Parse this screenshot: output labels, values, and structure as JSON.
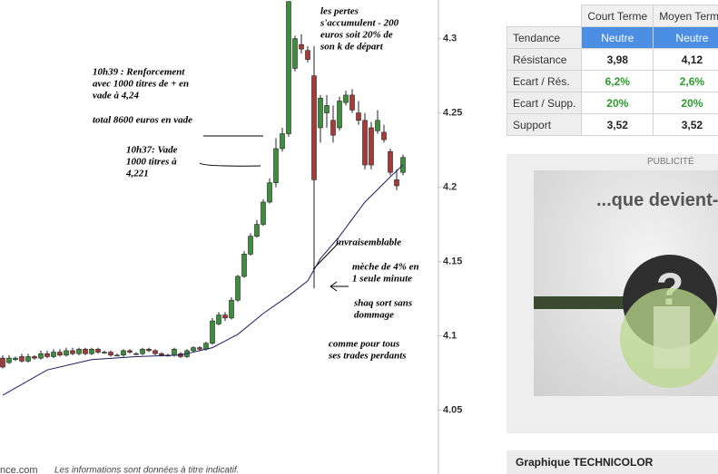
{
  "chart_data": {
    "type": "candlestick",
    "categories": [
      null,
      null,
      null,
      null,
      null,
      null,
      null,
      null,
      null,
      null,
      null,
      null,
      null,
      null,
      null,
      null,
      null,
      null,
      null,
      null,
      null,
      null,
      null,
      null,
      null,
      null,
      null,
      null,
      null,
      null,
      null,
      null,
      null,
      null,
      null,
      null,
      null,
      null,
      null,
      null,
      null,
      null,
      null,
      null,
      null,
      null,
      null,
      null,
      null,
      null,
      null,
      null,
      null,
      null,
      null,
      null,
      null,
      null,
      null,
      null,
      null,
      null,
      null,
      null
    ],
    "open": [
      4.085,
      4.082,
      4.084,
      4.086,
      4.083,
      4.086,
      4.085,
      4.088,
      4.086,
      4.089,
      4.087,
      4.09,
      4.088,
      4.091,
      4.088,
      4.091,
      4.089,
      4.089,
      4.087,
      4.087,
      4.09,
      4.088,
      4.088,
      4.091,
      4.09,
      4.088,
      4.087,
      4.087,
      4.088,
      4.086,
      4.09,
      4.092,
      4.091,
      4.095,
      4.108,
      4.114,
      4.112,
      4.124,
      4.14,
      4.155,
      4.167,
      4.175,
      4.19,
      4.203,
      4.226,
      4.236,
      4.28,
      4.296,
      4.292,
      4.275,
      4.24,
      4.25,
      4.245,
      4.24,
      4.257,
      4.262,
      4.25,
      4.245,
      4.24,
      4.238,
      4.237,
      4.224,
      4.205,
      4.21
    ],
    "high": [
      4.087,
      4.087,
      4.086,
      4.088,
      4.088,
      4.087,
      4.09,
      4.09,
      4.091,
      4.091,
      4.092,
      4.092,
      4.092,
      4.092,
      4.092,
      4.092,
      4.09,
      4.09,
      4.088,
      4.091,
      4.091,
      4.089,
      4.092,
      4.092,
      4.091,
      4.089,
      4.088,
      4.092,
      4.089,
      4.091,
      4.093,
      4.093,
      4.096,
      4.112,
      4.116,
      4.116,
      4.126,
      4.141,
      4.157,
      4.169,
      4.178,
      4.192,
      4.206,
      4.233,
      4.24,
      4.325,
      4.302,
      4.303,
      4.295,
      4.295,
      4.262,
      4.262,
      4.255,
      4.261,
      4.265,
      4.266,
      4.258,
      4.25,
      4.244,
      4.252,
      4.242,
      4.226,
      4.212,
      4.222
    ],
    "low": [
      4.078,
      4.081,
      4.083,
      4.082,
      4.082,
      4.084,
      4.084,
      4.085,
      4.085,
      4.086,
      4.086,
      4.087,
      4.087,
      4.087,
      4.087,
      4.088,
      4.088,
      4.086,
      4.087,
      4.086,
      4.088,
      4.087,
      4.087,
      4.089,
      4.087,
      4.086,
      4.086,
      4.086,
      4.085,
      4.085,
      4.089,
      4.09,
      4.09,
      4.094,
      4.107,
      4.11,
      4.111,
      4.123,
      4.139,
      4.154,
      4.166,
      4.174,
      4.189,
      4.2,
      4.224,
      4.234,
      4.278,
      4.29,
      4.284,
      4.132,
      4.23,
      4.24,
      4.23,
      4.238,
      4.255,
      4.25,
      4.242,
      4.212,
      4.212,
      4.236,
      4.23,
      4.208,
      4.198,
      4.208
    ],
    "close": [
      4.079,
      4.085,
      4.085,
      4.083,
      4.086,
      4.085,
      4.088,
      4.086,
      4.089,
      4.087,
      4.09,
      4.088,
      4.091,
      4.088,
      4.091,
      4.089,
      4.089,
      4.087,
      4.087,
      4.09,
      4.089,
      4.088,
      4.091,
      4.09,
      4.088,
      4.087,
      4.087,
      4.091,
      4.086,
      4.09,
      4.092,
      4.091,
      4.095,
      4.11,
      4.114,
      4.112,
      4.124,
      4.14,
      4.155,
      4.167,
      4.175,
      4.19,
      4.203,
      4.226,
      4.236,
      4.325,
      4.3,
      4.293,
      4.286,
      4.205,
      4.26,
      4.255,
      4.235,
      4.258,
      4.262,
      4.252,
      4.245,
      4.215,
      4.215,
      4.245,
      4.232,
      4.21,
      4.201,
      4.22
    ],
    "up_color": "#3d8f3d",
    "down_color": "#a83a3a",
    "moving_average": {
      "x": [
        0,
        7,
        14,
        21,
        28,
        33,
        37,
        41,
        45,
        48,
        50,
        53,
        57,
        61,
        63
      ],
      "values": [
        4.06,
        4.077,
        4.084,
        4.086,
        4.087,
        4.092,
        4.101,
        4.115,
        4.127,
        4.137,
        4.152,
        4.167,
        4.19,
        4.207,
        4.215
      ],
      "color": "#1c1c5c"
    },
    "ylim": [
      4.007,
      4.326
    ],
    "yticks": [
      4.05,
      4.1,
      4.15,
      4.2,
      4.25,
      4.3
    ],
    "annotations": [
      {
        "lines": [
          "les pertes",
          "s'accumulent - 200",
          "euros soit 20% de",
          "son k de départ"
        ]
      },
      {
        "lines": [
          "10h39 : Renforcement",
          "avec 1000 titres de + en",
          "vade à 4,24"
        ]
      },
      {
        "lines": [
          "total 8600 euros en vade"
        ]
      },
      {
        "lines": [
          "10h37: Vade",
          "1000 titres à",
          "4,221"
        ]
      },
      {
        "lines": [
          "invraisemblable"
        ]
      },
      {
        "lines": [
          "mèche de 4% en",
          "1 seule minute"
        ]
      },
      {
        "lines": [
          "shaq sort sans",
          "dommage"
        ]
      },
      {
        "lines": [
          "comme pour tous",
          "ses trades perdants"
        ]
      }
    ]
  },
  "footer": {
    "site": "nce.com",
    "disclaimer": "Les informations sont données à titre indicatif."
  },
  "table": {
    "header": [
      "Court Terme",
      "Moyen Terme"
    ],
    "rows": [
      [
        "Tendance",
        "Neutre",
        "Neutre"
      ],
      [
        "Résistance",
        "3,98",
        "4,12"
      ],
      [
        "Ecart / Rés.",
        "6,2%",
        "2,6%"
      ],
      [
        "Ecart / Supp.",
        "20%",
        "20%"
      ],
      [
        "Support",
        "3,52",
        "3,52"
      ]
    ]
  },
  "ad": {
    "label": "PUBLICITÉ",
    "headline": "...que devient-"
  },
  "bottom_title": "Graphique TECHNICOLOR"
}
